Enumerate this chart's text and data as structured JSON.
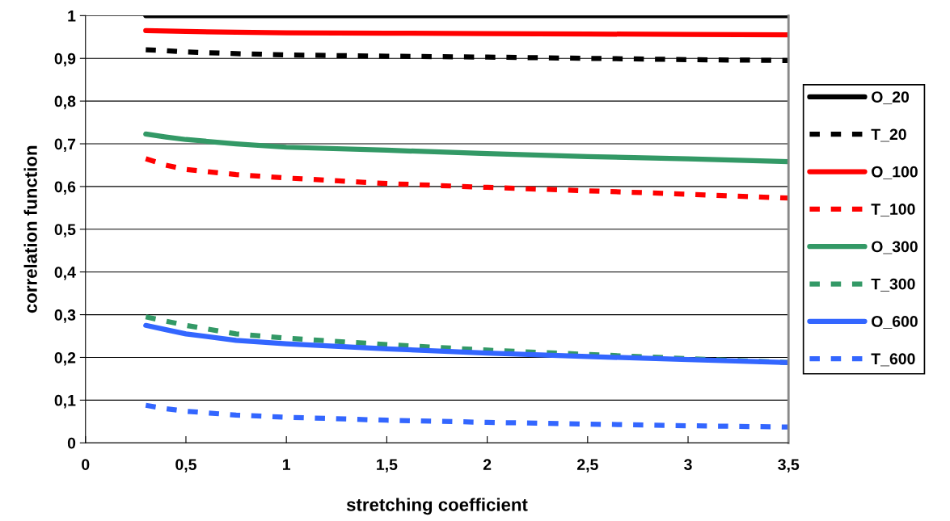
{
  "chart_data": {
    "type": "line",
    "xlabel": "stretching coefficient",
    "ylabel": "correlation function",
    "x": [
      0.3,
      0.4,
      0.5,
      0.75,
      1,
      1.5,
      2,
      2.5,
      3,
      3.5
    ],
    "series": [
      {
        "name": "O_20",
        "color": "#000000",
        "line_style": "solid",
        "values": [
          1,
          1,
          1,
          1,
          1,
          1,
          1,
          1,
          1,
          1
        ]
      },
      {
        "name": "T_20",
        "color": "#000000",
        "line_style": "dashed",
        "values": [
          0.92,
          0.918,
          0.915,
          0.911,
          0.908,
          0.905,
          0.903,
          0.9,
          0.897,
          0.895
        ]
      },
      {
        "name": "O_100",
        "color": "#ff0000",
        "line_style": "solid",
        "values": [
          0.965,
          0.964,
          0.963,
          0.961,
          0.96,
          0.959,
          0.958,
          0.957,
          0.956,
          0.955
        ]
      },
      {
        "name": "T_100",
        "color": "#ff0000",
        "line_style": "dashed",
        "values": [
          0.665,
          0.65,
          0.64,
          0.628,
          0.62,
          0.607,
          0.598,
          0.59,
          0.582,
          0.573
        ]
      },
      {
        "name": "O_300",
        "color": "#339966",
        "line_style": "solid",
        "values": [
          0.723,
          0.716,
          0.71,
          0.7,
          0.692,
          0.685,
          0.677,
          0.67,
          0.665,
          0.658
        ]
      },
      {
        "name": "T_300",
        "color": "#339966",
        "line_style": "dashed",
        "values": [
          0.295,
          0.285,
          0.275,
          0.255,
          0.245,
          0.23,
          0.217,
          0.207,
          0.197,
          0.188
        ]
      },
      {
        "name": "O_600",
        "color": "#3366ff",
        "line_style": "solid",
        "values": [
          0.275,
          0.265,
          0.255,
          0.24,
          0.232,
          0.22,
          0.21,
          0.202,
          0.195,
          0.188
        ]
      },
      {
        "name": "T_600",
        "color": "#3366ff",
        "line_style": "dashed",
        "values": [
          0.088,
          0.08,
          0.074,
          0.065,
          0.06,
          0.053,
          0.048,
          0.044,
          0.04,
          0.037
        ]
      }
    ],
    "xlim": [
      0,
      3.5
    ],
    "ylim": [
      0,
      1
    ],
    "xticks": [
      0,
      {
        "value": 0.5,
        "label": "0,5"
      },
      1,
      {
        "value": 1.5,
        "label": "1,5"
      },
      2,
      {
        "value": 2.5,
        "label": "2,5"
      },
      3,
      {
        "value": 3.5,
        "label": "3,5"
      }
    ],
    "yticks": [
      0,
      {
        "value": 0.1,
        "label": "0,1"
      },
      {
        "value": 0.2,
        "label": "0,2"
      },
      {
        "value": 0.3,
        "label": "0,3"
      },
      {
        "value": 0.4,
        "label": "0,4"
      },
      {
        "value": 0.5,
        "label": "0,5"
      },
      {
        "value": 0.6,
        "label": "0,6"
      },
      {
        "value": 0.7,
        "label": "0,7"
      },
      {
        "value": 0.8,
        "label": "0,8"
      },
      {
        "value": 0.9,
        "label": "0,9"
      },
      1
    ],
    "grid": "y",
    "legend": "right",
    "marker": "none"
  }
}
